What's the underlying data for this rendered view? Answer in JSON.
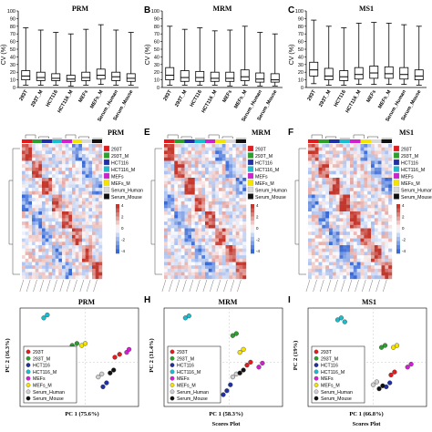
{
  "figure": {
    "top_row": [
      {
        "letter": "",
        "title": "PRM",
        "ylabel": "CV (%)"
      },
      {
        "letter": "B",
        "title": "MRM",
        "ylabel": "CV (%)"
      },
      {
        "letter": "C",
        "title": "MS1",
        "ylabel": "CV (%)"
      }
    ],
    "mid_row": [
      {
        "letter": "",
        "title": "PRM"
      },
      {
        "letter": "E",
        "title": "MRM"
      },
      {
        "letter": "F",
        "title": "MS1"
      }
    ],
    "bottom_row": [
      {
        "letter": "",
        "title": "PRM",
        "xlabel": "PC 1 (75.6%)",
        "ylabel": "PC 2 (16.3%)",
        "caption": ""
      },
      {
        "letter": "H",
        "title": "MRM",
        "xlabel": "PC 1 (58.3%)",
        "ylabel": "PC 2 (31.4%)",
        "caption": "Scores Plot"
      },
      {
        "letter": "I",
        "title": "MS1",
        "xlabel": "PC 1 (66.8%)",
        "ylabel": "PC 2 (19%)",
        "caption": "Scores Plot"
      }
    ],
    "heatmap_legend": [
      {
        "label": "293T",
        "color": "#e41a1c"
      },
      {
        "label": "293T_M",
        "color": "#2ca02c"
      },
      {
        "label": "HCT116",
        "color": "#1f2fa8"
      },
      {
        "label": "HCT116_M",
        "color": "#17becf"
      },
      {
        "label": "MEFs",
        "color": "#d11fd1"
      },
      {
        "label": "MEFs_M",
        "color": "#f5e400"
      },
      {
        "label": "Serum_Human",
        "color": "#d9d9d9"
      },
      {
        "label": "Serum_Mouse",
        "color": "#111111"
      }
    ],
    "pca_legend": [
      {
        "label": "293T",
        "color": "#e41a1c"
      },
      {
        "label": "293T_M",
        "color": "#2ca02c"
      },
      {
        "label": "HCT116",
        "color": "#1f2fa8"
      },
      {
        "label": "HCT116_M",
        "color": "#17becf"
      },
      {
        "label": "MEFs",
        "color": "#d11fd1"
      },
      {
        "label": "MEFs_M",
        "color": "#f5e400"
      },
      {
        "label": "Serum_Human",
        "color": "#cfcfcf"
      },
      {
        "label": "Serum_Mouse",
        "color": "#111111"
      }
    ],
    "colorbar_ticks": [
      "4",
      "2",
      "0",
      "-2",
      "-4"
    ]
  },
  "chart_data": [
    {
      "type": "boxplot",
      "title": "PRM",
      "ylabel": "CV (%)",
      "ylim": [
        0,
        100
      ],
      "yticks": [
        0,
        10,
        20,
        30,
        40,
        50,
        60,
        70,
        80,
        90,
        100
      ],
      "categories": [
        "293T",
        "293T_M",
        "HCT116",
        "HCT116_M",
        "MEFs",
        "MEFs_M",
        "Serum_Human",
        "Serum_Mouse"
      ],
      "boxes": [
        [
          3,
          10,
          15,
          22,
          78
        ],
        [
          3,
          9,
          13,
          20,
          75
        ],
        [
          3,
          9,
          12,
          18,
          72
        ],
        [
          2,
          8,
          11,
          16,
          70
        ],
        [
          3,
          9,
          13,
          20,
          76
        ],
        [
          4,
          11,
          16,
          24,
          82
        ],
        [
          3,
          9,
          14,
          20,
          75
        ],
        [
          3,
          8,
          12,
          18,
          72
        ]
      ]
    },
    {
      "type": "boxplot",
      "title": "MRM",
      "ylabel": "CV (%)",
      "ylim": [
        0,
        100
      ],
      "yticks": [
        0,
        10,
        20,
        30,
        40,
        50,
        60,
        70,
        80,
        90,
        100
      ],
      "categories": [
        "293T",
        "293T_M",
        "HCT116",
        "HCT116_M",
        "MEFs",
        "MEFs_M",
        "Serum_Human",
        "Serum_Mouse"
      ],
      "boxes": [
        [
          3,
          10,
          16,
          26,
          80
        ],
        [
          3,
          8,
          13,
          22,
          76
        ],
        [
          3,
          8,
          13,
          21,
          78
        ],
        [
          3,
          8,
          12,
          20,
          74
        ],
        [
          2,
          8,
          12,
          20,
          75
        ],
        [
          3,
          9,
          14,
          23,
          80
        ],
        [
          2,
          7,
          11,
          19,
          72
        ],
        [
          2,
          7,
          10,
          18,
          70
        ]
      ]
    },
    {
      "type": "boxplot",
      "title": "MS1",
      "ylabel": "CV (%)",
      "ylim": [
        0,
        100
      ],
      "yticks": [
        0,
        10,
        20,
        30,
        40,
        50,
        60,
        70,
        80,
        90,
        100
      ],
      "categories": [
        "293T",
        "293T_M",
        "HCT116",
        "HCT116_M",
        "MEFs",
        "MEFs_M",
        "Serum_Human",
        "Serum_Mouse"
      ],
      "boxes": [
        [
          5,
          15,
          23,
          33,
          88
        ],
        [
          3,
          10,
          15,
          25,
          80
        ],
        [
          3,
          9,
          14,
          22,
          78
        ],
        [
          4,
          11,
          17,
          26,
          84
        ],
        [
          4,
          12,
          19,
          28,
          85
        ],
        [
          4,
          12,
          18,
          27,
          84
        ],
        [
          4,
          11,
          17,
          26,
          82
        ],
        [
          3,
          10,
          15,
          23,
          80
        ]
      ]
    },
    {
      "type": "scatter",
      "title": "PRM",
      "xlabel": "PC 1 (75.6%)",
      "ylabel": "PC 2 (16.3%)",
      "series": [
        {
          "name": "293T",
          "color": "#e41a1c",
          "points": [
            [
              0.8,
              0.5
            ],
            [
              0.84,
              0.53
            ]
          ]
        },
        {
          "name": "293T_M",
          "color": "#2ca02c",
          "points": [
            [
              0.44,
              0.62
            ],
            [
              0.48,
              0.64
            ]
          ]
        },
        {
          "name": "HCT116",
          "color": "#1f2fa8",
          "points": [
            [
              0.7,
              0.2
            ],
            [
              0.73,
              0.24
            ]
          ]
        },
        {
          "name": "HCT116_M",
          "color": "#17becf",
          "points": [
            [
              0.2,
              0.9
            ],
            [
              0.23,
              0.93
            ]
          ]
        },
        {
          "name": "MEFs",
          "color": "#d11fd1",
          "points": [
            [
              0.9,
              0.55
            ],
            [
              0.92,
              0.58
            ]
          ]
        },
        {
          "name": "MEFs_M",
          "color": "#f5e400",
          "points": [
            [
              0.52,
              0.62
            ],
            [
              0.55,
              0.64
            ]
          ]
        },
        {
          "name": "Serum_Human",
          "color": "#cfcfcf",
          "points": [
            [
              0.66,
              0.3
            ],
            [
              0.69,
              0.33
            ]
          ]
        },
        {
          "name": "Serum_Mouse",
          "color": "#111111",
          "points": [
            [
              0.76,
              0.34
            ],
            [
              0.79,
              0.37
            ]
          ]
        }
      ]
    },
    {
      "type": "scatter",
      "title": "MRM",
      "xlabel": "PC 1 (58.3%)",
      "ylabel": "PC 2 (31.4%)",
      "series": [
        {
          "name": "293T",
          "color": "#e41a1c",
          "points": [
            [
              0.7,
              0.42
            ],
            [
              0.73,
              0.45
            ]
          ]
        },
        {
          "name": "293T_M",
          "color": "#2ca02c",
          "points": [
            [
              0.58,
              0.72
            ],
            [
              0.61,
              0.74
            ]
          ]
        },
        {
          "name": "HCT116",
          "color": "#1f2fa8",
          "points": [
            [
              0.5,
              0.12
            ],
            [
              0.53,
              0.16
            ],
            [
              0.56,
              0.22
            ]
          ]
        },
        {
          "name": "HCT116_M",
          "color": "#17becf",
          "points": [
            [
              0.18,
              0.9
            ],
            [
              0.21,
              0.92
            ]
          ]
        },
        {
          "name": "MEFs",
          "color": "#d11fd1",
          "points": [
            [
              0.8,
              0.4
            ],
            [
              0.83,
              0.44
            ]
          ]
        },
        {
          "name": "MEFs_M",
          "color": "#f5e400",
          "points": [
            [
              0.64,
              0.55
            ],
            [
              0.67,
              0.58
            ]
          ]
        },
        {
          "name": "Serum_Human",
          "color": "#cfcfcf",
          "points": [
            [
              0.58,
              0.3
            ],
            [
              0.61,
              0.33
            ]
          ]
        },
        {
          "name": "Serum_Mouse",
          "color": "#111111",
          "points": [
            [
              0.64,
              0.34
            ],
            [
              0.67,
              0.37
            ]
          ]
        }
      ]
    },
    {
      "type": "scatter",
      "title": "MS1",
      "xlabel": "PC 1 (66.8%)",
      "ylabel": "PC 2 (19%)",
      "series": [
        {
          "name": "293T",
          "color": "#e41a1c",
          "points": [
            [
              0.7,
              0.32
            ],
            [
              0.73,
              0.35
            ]
          ]
        },
        {
          "name": "293T_M",
          "color": "#2ca02c",
          "points": [
            [
              0.62,
              0.6
            ],
            [
              0.65,
              0.62
            ]
          ]
        },
        {
          "name": "HCT116",
          "color": "#1f2fa8",
          "points": [
            [
              0.66,
              0.2
            ],
            [
              0.69,
              0.24
            ]
          ]
        },
        {
          "name": "HCT116_M",
          "color": "#17becf",
          "points": [
            [
              0.25,
              0.88
            ],
            [
              0.28,
              0.9
            ],
            [
              0.31,
              0.86
            ]
          ]
        },
        {
          "name": "MEFs",
          "color": "#d11fd1",
          "points": [
            [
              0.84,
              0.4
            ],
            [
              0.87,
              0.43
            ]
          ]
        },
        {
          "name": "MEFs_M",
          "color": "#f5e400",
          "points": [
            [
              0.72,
              0.6
            ],
            [
              0.75,
              0.62
            ]
          ]
        },
        {
          "name": "Serum_Human",
          "color": "#cfcfcf",
          "points": [
            [
              0.55,
              0.22
            ],
            [
              0.58,
              0.25
            ]
          ]
        },
        {
          "name": "Serum_Mouse",
          "color": "#111111",
          "points": [
            [
              0.6,
              0.18
            ],
            [
              0.63,
              0.21
            ]
          ]
        }
      ]
    }
  ]
}
